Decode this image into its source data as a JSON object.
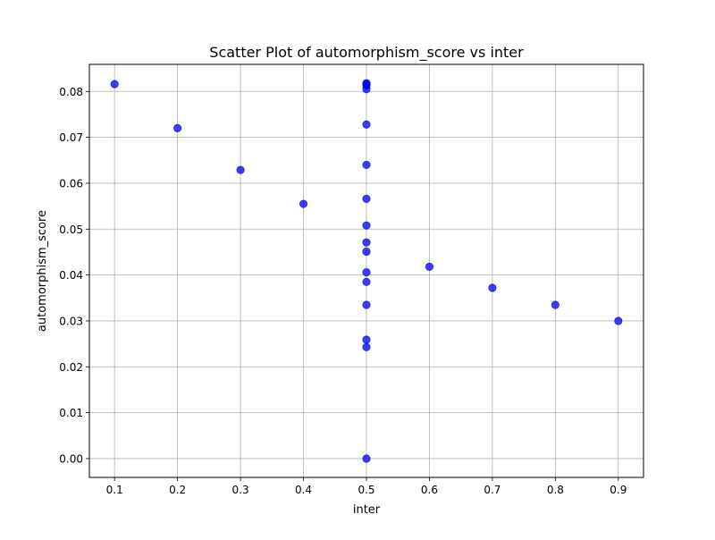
{
  "chart_data": {
    "type": "scatter",
    "title": "Scatter Plot of automorphism_score vs inter",
    "xlabel": "inter",
    "ylabel": "automorphism_score",
    "xlim": [
      0.06,
      0.94
    ],
    "ylim": [
      -0.0041,
      0.0859
    ],
    "xticks": [
      0.1,
      0.2,
      0.3,
      0.4,
      0.5,
      0.6,
      0.7,
      0.8,
      0.9
    ],
    "xtick_labels": [
      "0.1",
      "0.2",
      "0.3",
      "0.4",
      "0.5",
      "0.6",
      "0.7",
      "0.8",
      "0.9"
    ],
    "yticks": [
      0.0,
      0.01,
      0.02,
      0.03,
      0.04,
      0.05,
      0.06,
      0.07,
      0.08
    ],
    "ytick_labels": [
      "0.00",
      "0.01",
      "0.02",
      "0.03",
      "0.04",
      "0.05",
      "0.06",
      "0.07",
      "0.08"
    ],
    "grid": true,
    "marker_color": "#0000ee",
    "marker_alpha": 0.75,
    "points": [
      {
        "x": 0.1,
        "y": 0.0816
      },
      {
        "x": 0.2,
        "y": 0.072
      },
      {
        "x": 0.3,
        "y": 0.0629
      },
      {
        "x": 0.4,
        "y": 0.0555
      },
      {
        "x": 0.5,
        "y": 0.0818
      },
      {
        "x": 0.5,
        "y": 0.0816
      },
      {
        "x": 0.5,
        "y": 0.0813
      },
      {
        "x": 0.5,
        "y": 0.0805
      },
      {
        "x": 0.5,
        "y": 0.0728
      },
      {
        "x": 0.5,
        "y": 0.064
      },
      {
        "x": 0.5,
        "y": 0.0566
      },
      {
        "x": 0.5,
        "y": 0.0508
      },
      {
        "x": 0.5,
        "y": 0.0471
      },
      {
        "x": 0.5,
        "y": 0.0451
      },
      {
        "x": 0.5,
        "y": 0.0406
      },
      {
        "x": 0.5,
        "y": 0.0385
      },
      {
        "x": 0.5,
        "y": 0.0335
      },
      {
        "x": 0.5,
        "y": 0.0259
      },
      {
        "x": 0.5,
        "y": 0.0243
      },
      {
        "x": 0.5,
        "y": 0.0
      },
      {
        "x": 0.6,
        "y": 0.0418
      },
      {
        "x": 0.7,
        "y": 0.0372
      },
      {
        "x": 0.8,
        "y": 0.0335
      },
      {
        "x": 0.9,
        "y": 0.03
      }
    ]
  }
}
